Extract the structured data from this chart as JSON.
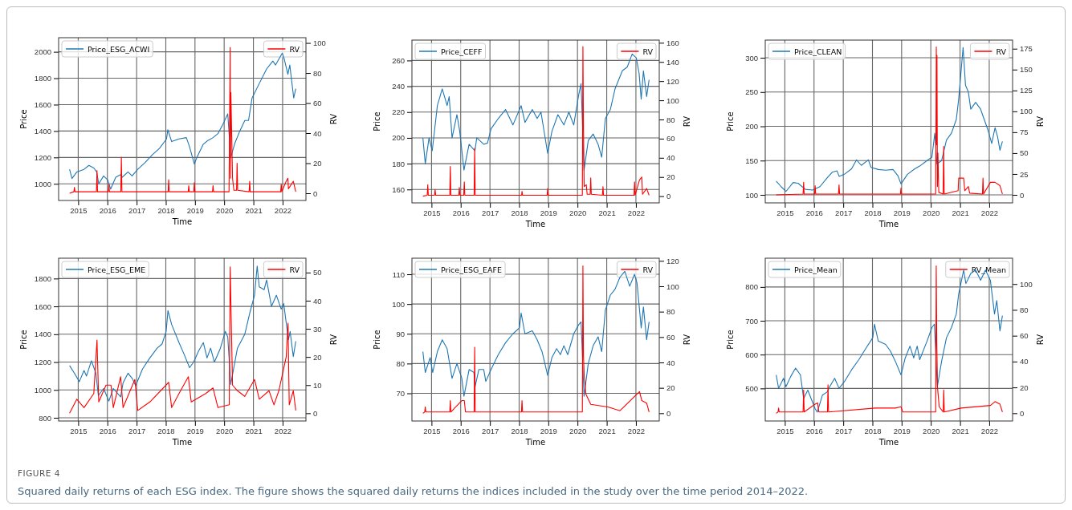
{
  "chart_data": [
    {
      "type": "line",
      "xlabel": "Time",
      "ylabel": "Price",
      "y2label": "RV",
      "xlim": [
        "2014-05-01",
        "2022-10-20"
      ],
      "xticks": [
        "2015",
        "2016",
        "2017",
        "2018",
        "2019",
        "2020",
        "2021",
        "2022"
      ],
      "ylim": [
        874,
        2107
      ],
      "yticks": [
        1000,
        1200,
        1400,
        1600,
        1800,
        2000
      ],
      "y2lim": [
        -4.8,
        103.5
      ],
      "y2ticks": [
        0,
        20,
        40,
        60,
        80,
        100
      ],
      "grid": true,
      "legend": "top",
      "annotations": [
        "FIGURE 4",
        "Squared daily returns of each ESG index. The figure shows the squared daily returns the indices included in the study over the time period 2014–2022."
      ],
      "series": [
        {
          "name": "Price_ESG_ACWI",
          "color": "#1f77b4",
          "x": [
            "2014-09-15",
            "2014-10-15",
            "2014-12-15",
            "2015-03-15",
            "2015-05-15",
            "2015-07-15",
            "2015-08-20",
            "2015-09-15",
            "2015-11-15",
            "2016-01-05",
            "2016-02-11",
            "2016-04-15",
            "2016-06-15",
            "2016-07-05",
            "2016-09-15",
            "2016-11-05",
            "2017-01-15",
            "2017-04-15",
            "2017-07-15",
            "2017-10-15",
            "2018-01-10",
            "2018-01-26",
            "2018-03-15",
            "2018-06-15",
            "2018-09-15",
            "2018-10-25",
            "2018-12-24",
            "2019-01-25",
            "2019-04-15",
            "2019-06-15",
            "2019-08-15",
            "2019-10-15",
            "2019-12-15",
            "2020-02-15",
            "2020-03-23",
            "2020-05-15",
            "2020-07-15",
            "2020-09-15",
            "2020-11-01",
            "2020-12-15",
            "2021-03-15",
            "2021-06-15",
            "2021-09-01",
            "2021-10-05",
            "2021-12-28",
            "2022-01-20",
            "2022-03-08",
            "2022-04-01",
            "2022-05-20",
            "2022-06-15"
          ],
          "values": [
            1110,
            1040,
            1090,
            1110,
            1140,
            1120,
            1090,
            1000,
            1060,
            1030,
            960,
            1050,
            1070,
            1050,
            1090,
            1060,
            1110,
            1160,
            1220,
            1270,
            1340,
            1410,
            1320,
            1340,
            1350,
            1280,
            1150,
            1200,
            1300,
            1330,
            1350,
            1380,
            1450,
            1530,
            1200,
            1310,
            1400,
            1480,
            1480,
            1650,
            1760,
            1870,
            1930,
            1900,
            1990,
            1950,
            1830,
            1900,
            1650,
            1720
          ]
        },
        {
          "name": "RV",
          "color": "#ff0000",
          "axis": "y2",
          "x": [
            "2014-09-15",
            "2014-11-08",
            "2014-11-15",
            "2014-11-22",
            "2015-08-17",
            "2015-08-24",
            "2015-08-31",
            "2016-01-13",
            "2016-01-20",
            "2016-01-27",
            "2016-06-17",
            "2016-06-24",
            "2016-07-01",
            "2018-01-30",
            "2018-02-06",
            "2018-02-13",
            "2018-10-08",
            "2018-10-15",
            "2018-10-22",
            "2018-12-17",
            "2018-12-24",
            "2018-12-31",
            "2019-08-08",
            "2019-08-15",
            "2019-08-22",
            "2020-03-02",
            "2020-03-16",
            "2020-03-20",
            "2020-03-25",
            "2020-04-15",
            "2020-05-01",
            "2020-06-04",
            "2020-06-11",
            "2020-06-18",
            "2020-11-08",
            "2020-11-15",
            "2020-11-22",
            "2021-12-08",
            "2021-12-15",
            "2021-12-22",
            "2022-02-15",
            "2022-03-08",
            "2022-03-15",
            "2022-05-15",
            "2022-06-15"
          ],
          "values": [
            0,
            1,
            4,
            1,
            1,
            15,
            1,
            1,
            6,
            1,
            1,
            24,
            1,
            1,
            9,
            1,
            1,
            5,
            1,
            1,
            7,
            1,
            1,
            5,
            1,
            1,
            97,
            10,
            67,
            10,
            2,
            2,
            20,
            2,
            1,
            8,
            1,
            1,
            6,
            1,
            8,
            10,
            3,
            8,
            1
          ]
        }
      ]
    },
    {
      "type": "line",
      "xlabel": "Time",
      "ylabel": "Price",
      "y2label": "RV",
      "xlim": [
        "2014-05-01",
        "2022-10-20"
      ],
      "xticks": [
        "2015",
        "2016",
        "2017",
        "2018",
        "2019",
        "2020",
        "2021",
        "2022"
      ],
      "ylim": [
        149.6,
        275.8
      ],
      "yticks": [
        160,
        180,
        200,
        220,
        240,
        260
      ],
      "y2lim": [
        -7,
        162.8
      ],
      "y2ticks": [
        0,
        20,
        40,
        60,
        80,
        100,
        120,
        140,
        160
      ],
      "grid": true,
      "legend": "top",
      "series": [
        {
          "name": "Price_CEFF",
          "color": "#1f77b4",
          "x": [
            "2014-09-15",
            "2014-10-15",
            "2014-12-01",
            "2015-01-10",
            "2015-03-15",
            "2015-05-15",
            "2015-07-15",
            "2015-08-10",
            "2015-09-15",
            "2015-11-15",
            "2015-12-20",
            "2016-02-11",
            "2016-04-15",
            "2016-06-27",
            "2016-07-20",
            "2016-10-15",
            "2016-12-01",
            "2017-01-15",
            "2017-04-15",
            "2017-07-15",
            "2017-10-15",
            "2018-01-26",
            "2018-03-15",
            "2018-06-15",
            "2018-08-15",
            "2018-10-01",
            "2018-12-24",
            "2019-02-15",
            "2019-05-01",
            "2019-07-15",
            "2019-09-15",
            "2019-11-15",
            "2020-01-15",
            "2020-02-15",
            "2020-03-23",
            "2020-05-15",
            "2020-07-15",
            "2020-09-15",
            "2020-10-30",
            "2020-12-15",
            "2021-02-15",
            "2021-04-15",
            "2021-07-15",
            "2021-09-15",
            "2021-11-15",
            "2022-01-05",
            "2022-02-10",
            "2022-03-08",
            "2022-04-05",
            "2022-05-15",
            "2022-06-15"
          ],
          "values": [
            200,
            180,
            200,
            190,
            225,
            238,
            225,
            232,
            200,
            218,
            205,
            175,
            195,
            190,
            200,
            195,
            196,
            207,
            215,
            222,
            210,
            225,
            212,
            222,
            215,
            220,
            188,
            205,
            218,
            210,
            220,
            210,
            233,
            242,
            175,
            198,
            203,
            195,
            185,
            215,
            222,
            238,
            252,
            255,
            265,
            262,
            250,
            230,
            252,
            232,
            245
          ]
        },
        {
          "name": "RV",
          "color": "#ff0000",
          "axis": "y2",
          "x": [
            "2014-09-15",
            "2014-11-08",
            "2014-11-15",
            "2014-11-22",
            "2015-02-08",
            "2015-02-15",
            "2015-02-22",
            "2015-08-17",
            "2015-08-24",
            "2015-08-31",
            "2015-12-08",
            "2015-12-15",
            "2015-12-22",
            "2016-02-08",
            "2016-02-15",
            "2016-02-22",
            "2016-06-17",
            "2016-06-24",
            "2016-07-01",
            "2018-02-01",
            "2018-02-06",
            "2018-02-13",
            "2018-12-17",
            "2018-12-24",
            "2018-12-31",
            "2020-03-02",
            "2020-03-09",
            "2020-03-16",
            "2020-03-25",
            "2020-04-20",
            "2020-05-01",
            "2020-06-08",
            "2020-06-15",
            "2020-06-22",
            "2020-11-08",
            "2020-11-15",
            "2020-11-22",
            "2021-12-08",
            "2021-12-15",
            "2021-12-22",
            "2022-02-15",
            "2022-03-15",
            "2022-03-25",
            "2022-05-15",
            "2022-06-15"
          ],
          "values": [
            0,
            1,
            12,
            1,
            1,
            7,
            1,
            1,
            31,
            1,
            1,
            9,
            1,
            1,
            15,
            1,
            1,
            50,
            1,
            1,
            5,
            1,
            1,
            8,
            1,
            1,
            156,
            70,
            10,
            12,
            2,
            2,
            19,
            2,
            1,
            10,
            1,
            1,
            15,
            1,
            17,
            20,
            2,
            8,
            1
          ]
        }
      ]
    },
    {
      "type": "line",
      "xlabel": "Time",
      "ylabel": "Price",
      "y2label": "RV",
      "xlim": [
        "2014-05-01",
        "2022-10-20"
      ],
      "xticks": [
        "2015",
        "2016",
        "2017",
        "2018",
        "2019",
        "2020",
        "2021",
        "2022"
      ],
      "ylim": [
        88.3,
        325.8
      ],
      "yticks": [
        100,
        150,
        200,
        250,
        300
      ],
      "y2lim": [
        -9.6,
        185.3
      ],
      "y2ticks": [
        0,
        25,
        50,
        75,
        100,
        125,
        150,
        175
      ],
      "grid": true,
      "legend": "top",
      "series": [
        {
          "name": "Price_CLEAN",
          "color": "#1f77b4",
          "x": [
            "2014-09-15",
            "2014-11-15",
            "2015-01-15",
            "2015-04-15",
            "2015-06-15",
            "2015-09-15",
            "2015-12-15",
            "2016-03-15",
            "2016-06-15",
            "2016-08-15",
            "2016-10-15",
            "2016-11-10",
            "2017-01-15",
            "2017-04-15",
            "2017-06-15",
            "2017-08-15",
            "2017-11-10",
            "2017-12-15",
            "2018-03-15",
            "2018-06-15",
            "2018-09-15",
            "2018-11-15",
            "2018-12-24",
            "2019-03-15",
            "2019-06-15",
            "2019-08-15",
            "2019-11-15",
            "2020-01-15",
            "2020-02-20",
            "2020-03-18",
            "2020-05-15",
            "2020-07-15",
            "2020-09-15",
            "2020-11-15",
            "2020-12-15",
            "2021-02-08",
            "2021-03-10",
            "2021-04-15",
            "2021-05-15",
            "2021-07-15",
            "2021-09-15",
            "2021-10-15",
            "2021-12-15",
            "2022-02-01",
            "2022-03-15",
            "2022-04-15",
            "2022-05-15",
            "2022-06-15"
          ],
          "values": [
            120,
            112,
            105,
            118,
            117,
            108,
            107,
            112,
            125,
            133,
            135,
            127,
            130,
            138,
            151,
            143,
            151,
            140,
            137,
            136,
            137,
            128,
            116,
            130,
            138,
            142,
            150,
            155,
            190,
            145,
            150,
            180,
            190,
            210,
            240,
            315,
            260,
            250,
            225,
            235,
            225,
            215,
            195,
            175,
            198,
            185,
            165,
            178
          ]
        },
        {
          "name": "RV",
          "color": "#ff0000",
          "axis": "y2",
          "x": [
            "2014-09-15",
            "2015-08-17",
            "2015-08-24",
            "2015-08-31",
            "2016-01-08",
            "2016-01-15",
            "2016-01-22",
            "2016-11-02",
            "2016-11-09",
            "2016-11-16",
            "2018-12-17",
            "2018-12-24",
            "2018-12-31",
            "2020-03-02",
            "2020-03-10",
            "2020-03-14",
            "2020-03-18",
            "2020-03-24",
            "2020-03-30",
            "2020-04-10",
            "2020-06-03",
            "2020-06-10",
            "2020-06-17",
            "2020-12-08",
            "2020-12-15",
            "2021-02-15",
            "2021-03-01",
            "2021-04-15",
            "2021-05-01",
            "2021-10-08",
            "2021-10-15",
            "2021-10-22",
            "2022-01-15",
            "2022-03-15",
            "2022-05-15",
            "2022-06-15"
          ],
          "values": [
            0,
            1,
            15,
            1,
            1,
            11,
            1,
            1,
            12,
            1,
            1,
            8,
            1,
            1,
            177,
            60,
            167,
            10,
            50,
            3,
            1,
            58,
            1,
            5,
            20,
            20,
            5,
            10,
            2,
            1,
            20,
            1,
            15,
            15,
            11,
            1
          ]
        }
      ]
    },
    {
      "type": "line",
      "xlabel": "Time",
      "ylabel": "Price",
      "y2label": "RV",
      "xlim": [
        "2014-05-01",
        "2022-10-20"
      ],
      "xticks": [
        "2015",
        "2016",
        "2017",
        "2018",
        "2019",
        "2020",
        "2021",
        "2022"
      ],
      "ylim": [
        777,
        1946
      ],
      "yticks": [
        800,
        1000,
        1200,
        1400,
        1600,
        1800
      ],
      "y2lim": [
        -2.75,
        55.1
      ],
      "y2ticks": [
        0,
        10,
        20,
        30,
        40,
        50
      ],
      "grid": true,
      "legend": "top",
      "series": [
        {
          "name": "Price_ESG_EME",
          "color": "#1f77b4",
          "x": [
            "2014-09-15",
            "2014-11-15",
            "2015-01-15",
            "2015-03-15",
            "2015-04-15",
            "2015-06-15",
            "2015-08-10",
            "2015-09-10",
            "2015-11-15",
            "2016-01-20",
            "2016-03-15",
            "2016-06-15",
            "2016-07-15",
            "2016-09-15",
            "2016-11-10",
            "2016-12-20",
            "2017-03-15",
            "2017-06-15",
            "2017-09-15",
            "2017-11-15",
            "2018-01-05",
            "2018-01-28",
            "2018-03-15",
            "2018-06-15",
            "2018-08-15",
            "2018-10-25",
            "2018-12-15",
            "2019-02-15",
            "2019-04-15",
            "2019-06-01",
            "2019-07-15",
            "2019-09-01",
            "2019-11-15",
            "2020-01-15",
            "2020-02-15",
            "2020-03-23",
            "2020-06-15",
            "2020-09-15",
            "2020-11-15",
            "2021-01-15",
            "2021-02-17",
            "2021-03-15",
            "2021-05-15",
            "2021-06-15",
            "2021-08-15",
            "2021-10-15",
            "2021-12-15",
            "2022-01-15",
            "2022-03-15",
            "2022-04-05",
            "2022-05-15",
            "2022-06-15"
          ],
          "values": [
            1175,
            1120,
            1060,
            1140,
            1100,
            1210,
            1120,
            960,
            1010,
            920,
            1010,
            950,
            1050,
            1120,
            1080,
            1030,
            1150,
            1230,
            1300,
            1330,
            1420,
            1570,
            1470,
            1340,
            1260,
            1160,
            1200,
            1280,
            1340,
            1230,
            1300,
            1200,
            1300,
            1420,
            1380,
            1040,
            1300,
            1400,
            1550,
            1680,
            1890,
            1740,
            1720,
            1790,
            1600,
            1680,
            1580,
            1620,
            1360,
            1420,
            1240,
            1350
          ]
        },
        {
          "name": "RV",
          "color": "#ff0000",
          "axis": "y2",
          "x": [
            "2014-09-15",
            "2014-12-15",
            "2015-03-15",
            "2015-07-15",
            "2015-08-24",
            "2015-09-15",
            "2015-12-15",
            "2016-02-15",
            "2016-03-15",
            "2016-06-15",
            "2016-07-15",
            "2016-12-10",
            "2017-01-15",
            "2017-06-15",
            "2018-02-06",
            "2018-03-15",
            "2018-06-15",
            "2018-10-10",
            "2018-11-15",
            "2019-05-15",
            "2019-08-15",
            "2019-10-15",
            "2020-03-05",
            "2020-03-16",
            "2020-04-15",
            "2020-06-15",
            "2020-09-15",
            "2021-01-15",
            "2021-03-15",
            "2021-07-15",
            "2021-09-15",
            "2021-11-15",
            "2022-02-15",
            "2022-03-10",
            "2022-03-25",
            "2022-05-15",
            "2022-06-15"
          ],
          "values": [
            0,
            5,
            2,
            7,
            26,
            4,
            10,
            10,
            2,
            13,
            2,
            12,
            1,
            4,
            11,
            2,
            7,
            13,
            4,
            7,
            9,
            2,
            3,
            52,
            10,
            8,
            6,
            12,
            5,
            8,
            3,
            8,
            20,
            32,
            3,
            8,
            1
          ]
        }
      ]
    },
    {
      "type": "line",
      "xlabel": "Time",
      "ylabel": "Price",
      "y2label": "RV",
      "xlim": [
        "2014-05-01",
        "2022-10-20"
      ],
      "xticks": [
        "2015",
        "2016",
        "2017",
        "2018",
        "2019",
        "2020",
        "2021",
        "2022"
      ],
      "ylim": [
        60.7,
        115.4
      ],
      "yticks": [
        70,
        80,
        90,
        100,
        110
      ],
      "y2lim": [
        -6.1,
        122.1
      ],
      "y2ticks": [
        0,
        20,
        40,
        60,
        80,
        100,
        120
      ],
      "grid": true,
      "legend": "top",
      "series": [
        {
          "name": "Price_ESG_EAFE",
          "color": "#1f77b4",
          "x": [
            "2014-09-15",
            "2014-10-15",
            "2014-12-15",
            "2015-01-15",
            "2015-03-15",
            "2015-05-15",
            "2015-07-15",
            "2015-09-15",
            "2015-11-15",
            "2016-01-15",
            "2016-02-11",
            "2016-04-15",
            "2016-06-15",
            "2016-06-27",
            "2016-08-15",
            "2016-10-15",
            "2016-11-10",
            "2017-01-15",
            "2017-04-15",
            "2017-07-15",
            "2017-10-15",
            "2018-01-05",
            "2018-01-26",
            "2018-03-15",
            "2018-06-15",
            "2018-08-15",
            "2018-10-15",
            "2018-12-24",
            "2019-02-15",
            "2019-04-15",
            "2019-06-01",
            "2019-07-15",
            "2019-09-01",
            "2019-11-15",
            "2020-01-15",
            "2020-02-15",
            "2020-03-23",
            "2020-05-15",
            "2020-07-15",
            "2020-09-15",
            "2020-10-30",
            "2020-12-15",
            "2021-02-15",
            "2021-04-15",
            "2021-06-15",
            "2021-08-15",
            "2021-10-15",
            "2021-12-15",
            "2022-01-15",
            "2022-03-08",
            "2022-04-05",
            "2022-05-15",
            "2022-06-15"
          ],
          "values": [
            84,
            77,
            82,
            77,
            84,
            88,
            85,
            75,
            80,
            75,
            69,
            78,
            77,
            72,
            78,
            78,
            74,
            78,
            83,
            87,
            90,
            92,
            97,
            90,
            91,
            88,
            84,
            76,
            82,
            85,
            83,
            86,
            83,
            90,
            93,
            94,
            69,
            80,
            86,
            89,
            84,
            98,
            103,
            105,
            109,
            111,
            106,
            110,
            107,
            92,
            99,
            88,
            94
          ]
        },
        {
          "name": "RV",
          "color": "#ff0000",
          "axis": "y2",
          "x": [
            "2014-09-15",
            "2014-10-08",
            "2014-10-15",
            "2014-10-22",
            "2015-08-17",
            "2015-08-24",
            "2015-08-31",
            "2016-01-15",
            "2016-02-15",
            "2016-03-01",
            "2016-06-17",
            "2016-06-24",
            "2016-07-01",
            "2018-01-30",
            "2018-02-06",
            "2018-02-13",
            "2020-03-02",
            "2020-03-09",
            "2020-03-16",
            "2020-03-25",
            "2020-04-15",
            "2020-06-15",
            "2021-01-15",
            "2021-06-15",
            "2022-02-15",
            "2022-03-15",
            "2022-05-15",
            "2022-06-15"
          ],
          "values": [
            0,
            1,
            5,
            1,
            1,
            10,
            1,
            10,
            10,
            1,
            1,
            52,
            1,
            1,
            10,
            1,
            1,
            116,
            45,
            30,
            15,
            7,
            5,
            2,
            17,
            10,
            8,
            1
          ]
        }
      ]
    },
    {
      "type": "line",
      "xlabel": "Time",
      "ylabel": "Price",
      "y2label": "RV",
      "xlim": [
        "2014-05-01",
        "2022-10-20"
      ],
      "xticks": [
        "2015",
        "2016",
        "2017",
        "2018",
        "2019",
        "2020",
        "2021",
        "2022"
      ],
      "ylim": [
        403.7,
        885
      ],
      "yticks": [
        500,
        600,
        700,
        800
      ],
      "y2lim": [
        -6,
        120
      ],
      "y2ticks": [
        0,
        20,
        40,
        60,
        80,
        100
      ],
      "grid": true,
      "legend": "top",
      "series": [
        {
          "name": "Price_Mean",
          "color": "#1f77b4",
          "x": [
            "2014-09-15",
            "2014-10-15",
            "2014-12-15",
            "2015-01-15",
            "2015-03-15",
            "2015-05-15",
            "2015-07-15",
            "2015-08-24",
            "2015-10-15",
            "2016-01-15",
            "2016-02-11",
            "2016-04-15",
            "2016-06-15",
            "2016-07-15",
            "2016-09-15",
            "2016-11-10",
            "2017-01-15",
            "2017-04-15",
            "2017-07-15",
            "2017-10-15",
            "2018-01-05",
            "2018-01-26",
            "2018-03-15",
            "2018-06-15",
            "2018-08-15",
            "2018-10-15",
            "2018-12-24",
            "2019-02-15",
            "2019-04-15",
            "2019-06-01",
            "2019-07-15",
            "2019-08-15",
            "2019-11-15",
            "2020-01-15",
            "2020-02-15",
            "2020-03-23",
            "2020-05-15",
            "2020-07-15",
            "2020-09-15",
            "2020-11-15",
            "2020-12-15",
            "2021-02-15",
            "2021-03-15",
            "2021-05-15",
            "2021-07-15",
            "2021-09-15",
            "2021-11-15",
            "2022-01-15",
            "2022-03-08",
            "2022-04-05",
            "2022-05-15",
            "2022-06-15"
          ],
          "values": [
            540,
            500,
            530,
            505,
            535,
            560,
            540,
            470,
            495,
            440,
            430,
            480,
            490,
            505,
            530,
            500,
            520,
            555,
            585,
            620,
            650,
            690,
            640,
            630,
            610,
            580,
            540,
            590,
            625,
            590,
            625,
            585,
            640,
            680,
            690,
            505,
            580,
            650,
            680,
            720,
            780,
            850,
            810,
            840,
            850,
            820,
            850,
            820,
            720,
            760,
            670,
            715
          ]
        },
        {
          "name": "RV_Mean",
          "color": "#ff0000",
          "axis": "y2",
          "x": [
            "2014-09-15",
            "2014-10-08",
            "2014-10-15",
            "2014-10-22",
            "2015-08-17",
            "2015-08-24",
            "2015-08-31",
            "2016-01-15",
            "2016-02-15",
            "2016-03-01",
            "2016-06-17",
            "2016-06-24",
            "2016-07-01",
            "2018-02-06",
            "2018-10-15",
            "2018-12-24",
            "2019-01-15",
            "2020-03-02",
            "2020-03-09",
            "2020-03-16",
            "2020-03-25",
            "2020-04-15",
            "2020-06-04",
            "2020-06-11",
            "2020-06-18",
            "2021-01-15",
            "2022-01-15",
            "2022-03-15",
            "2022-05-15",
            "2022-06-15"
          ],
          "values": [
            0,
            1,
            4,
            1,
            1,
            18,
            1,
            7,
            8,
            1,
            1,
            22,
            1,
            4,
            4,
            5,
            1,
            1,
            114,
            54,
            20,
            5,
            1,
            18,
            1,
            4,
            6,
            9,
            7,
            1
          ]
        }
      ]
    }
  ]
}
